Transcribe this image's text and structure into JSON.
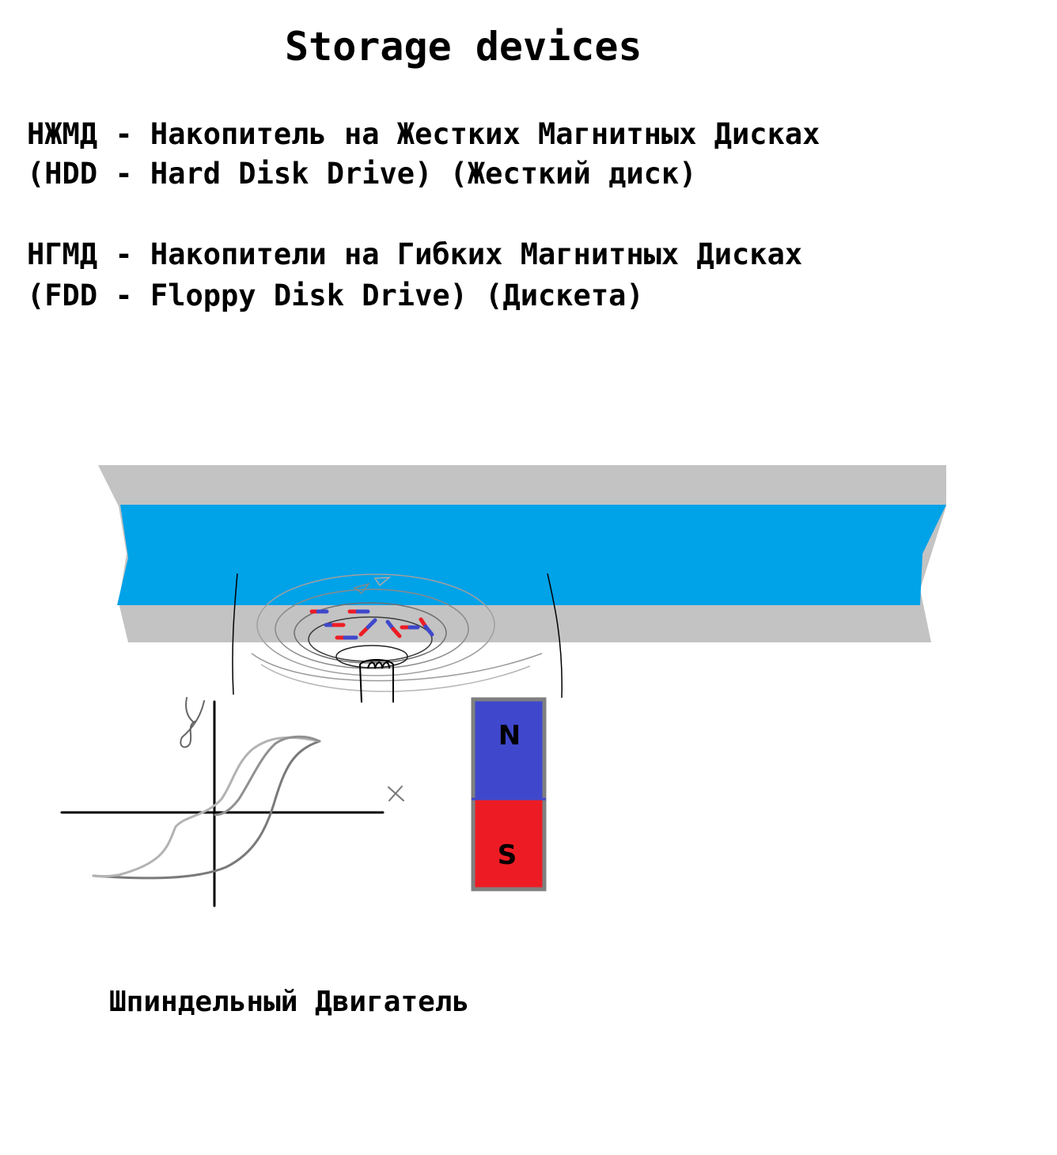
{
  "title": "Storage devices",
  "lines": [
    "НЖМД - Накопитель на Жестких Магнитных Дисках",
    "(HDD - Hard Disk Drive) (Жесткий диск)",
    "НГМД - Накопители на Гибких Магнитных Дисках",
    "(FDD - Floppy Disk Drive) (Дискета)"
  ],
  "graph": {
    "x_label": "x",
    "y_label": "y"
  },
  "magnet": {
    "north": "N",
    "south": "S",
    "north_color": "#3f48cc",
    "south_color": "#ed1c24"
  },
  "caption": "Шпиндельный Двигатель",
  "colors": {
    "platter_gray": "#c3c3c3",
    "platter_blue": "#00a2e8",
    "field_line": "#7f7f7f"
  }
}
